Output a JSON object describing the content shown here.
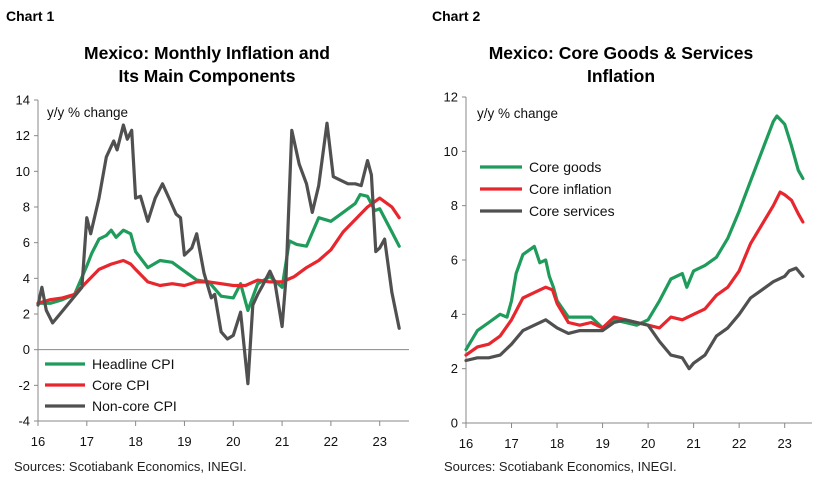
{
  "chart_data": [
    {
      "type": "line",
      "chart_label": "Chart 1",
      "title_line1": "Mexico: Monthly Inflation and",
      "title_line2": "Its Main Components",
      "ylabel": "y/y % change",
      "ylim": [
        -4,
        14
      ],
      "yticks": [
        -4,
        -2,
        0,
        2,
        4,
        6,
        8,
        10,
        12,
        14
      ],
      "xlim": [
        16,
        23.6
      ],
      "xticks": [
        "16",
        "17",
        "18",
        "19",
        "20",
        "21",
        "22",
        "23"
      ],
      "source": "Sources: Scotiabank Economics, INEGI.",
      "legend_position": "bottom-left",
      "series": [
        {
          "name": "Headline CPI",
          "color": "#1f9c5b",
          "x": [
            16,
            16.25,
            16.5,
            16.75,
            17,
            17.1,
            17.25,
            17.4,
            17.5,
            17.6,
            17.75,
            17.9,
            18,
            18.25,
            18.5,
            18.75,
            19,
            19.25,
            19.5,
            19.75,
            20,
            20.15,
            20.3,
            20.5,
            20.75,
            21,
            21.15,
            21.3,
            21.5,
            21.75,
            22,
            22.25,
            22.5,
            22.6,
            22.75,
            22.9,
            23,
            23.25,
            23.4
          ],
          "values": [
            2.6,
            2.6,
            2.8,
            3.1,
            4.7,
            5.4,
            6.2,
            6.4,
            6.7,
            6.3,
            6.7,
            6.5,
            5.5,
            4.6,
            5.0,
            4.9,
            4.4,
            3.9,
            3.8,
            3.0,
            2.9,
            3.7,
            2.2,
            3.7,
            4.1,
            3.5,
            6.1,
            5.9,
            5.8,
            7.4,
            7.2,
            7.7,
            8.2,
            8.7,
            8.6,
            7.8,
            7.9,
            6.6,
            5.8
          ]
        },
        {
          "name": "Core CPI",
          "color": "#e8262d",
          "x": [
            16,
            16.25,
            16.5,
            16.75,
            17,
            17.25,
            17.5,
            17.75,
            17.9,
            18,
            18.25,
            18.5,
            18.75,
            19,
            19.25,
            19.5,
            19.75,
            20,
            20.25,
            20.5,
            20.75,
            21,
            21.25,
            21.5,
            21.75,
            22,
            22.25,
            22.5,
            22.75,
            23,
            23.1,
            23.25,
            23.4
          ],
          "values": [
            2.6,
            2.8,
            2.9,
            3.1,
            3.8,
            4.5,
            4.8,
            5.0,
            4.8,
            4.5,
            3.8,
            3.6,
            3.7,
            3.6,
            3.8,
            3.8,
            3.7,
            3.6,
            3.6,
            3.9,
            3.8,
            3.8,
            4.1,
            4.6,
            5.0,
            5.6,
            6.6,
            7.3,
            8.0,
            8.5,
            8.3,
            8.0,
            7.4
          ]
        },
        {
          "name": "Non-core CPI",
          "color": "#505050",
          "x": [
            16,
            16.08,
            16.17,
            16.3,
            16.45,
            16.6,
            16.75,
            16.9,
            17,
            17.08,
            17.25,
            17.4,
            17.55,
            17.62,
            17.75,
            17.83,
            17.92,
            18,
            18.1,
            18.25,
            18.4,
            18.55,
            18.7,
            18.83,
            18.92,
            19,
            19.15,
            19.25,
            19.4,
            19.55,
            19.62,
            19.75,
            19.88,
            20,
            20.15,
            20.3,
            20.4,
            20.5,
            20.6,
            20.75,
            20.85,
            21,
            21.08,
            21.2,
            21.35,
            21.5,
            21.62,
            21.75,
            21.92,
            22.05,
            22.2,
            22.35,
            22.5,
            22.62,
            22.75,
            22.83,
            22.92,
            23,
            23.1,
            23.25,
            23.4
          ],
          "values": [
            2.5,
            3.5,
            2.2,
            1.5,
            2.0,
            2.5,
            3.0,
            3.5,
            7.4,
            6.5,
            8.5,
            10.8,
            11.7,
            11.2,
            12.6,
            11.8,
            12.3,
            8.5,
            8.6,
            7.2,
            8.5,
            9.3,
            8.4,
            7.6,
            7.4,
            5.3,
            5.7,
            6.5,
            4.3,
            2.9,
            3.1,
            1.0,
            0.6,
            0.8,
            2.1,
            -1.9,
            2.5,
            3.1,
            3.6,
            4.4,
            3.8,
            1.3,
            4.0,
            12.3,
            10.4,
            9.3,
            7.7,
            9.2,
            12.7,
            9.7,
            9.5,
            9.3,
            9.3,
            9.2,
            10.6,
            9.8,
            5.5,
            5.7,
            6.2,
            3.2,
            1.2
          ]
        }
      ]
    },
    {
      "type": "line",
      "chart_label": "Chart 2",
      "title_line1": "Mexico: Core Goods & Services",
      "title_line2": "Inflation",
      "ylabel": "y/y % change",
      "ylim": [
        0,
        12
      ],
      "yticks": [
        0,
        2,
        4,
        6,
        8,
        10,
        12
      ],
      "xlim": [
        16,
        23.6
      ],
      "xticks": [
        "16",
        "17",
        "18",
        "19",
        "20",
        "21",
        "22",
        "23"
      ],
      "source": "Sources: Scotiabank Economics, INEGI.",
      "legend_position": "top-left",
      "series": [
        {
          "name": "Core goods",
          "color": "#1f9c5b",
          "x": [
            16,
            16.25,
            16.5,
            16.75,
            16.9,
            17,
            17.1,
            17.25,
            17.5,
            17.62,
            17.75,
            17.83,
            17.92,
            18,
            18.25,
            18.5,
            18.75,
            19,
            19.25,
            19.5,
            19.75,
            20,
            20.25,
            20.5,
            20.75,
            20.85,
            21,
            21.25,
            21.5,
            21.75,
            22,
            22.25,
            22.5,
            22.75,
            22.83,
            23,
            23.15,
            23.3,
            23.4
          ],
          "values": [
            2.7,
            3.4,
            3.7,
            4.0,
            3.9,
            4.5,
            5.5,
            6.2,
            6.5,
            5.9,
            6.0,
            5.4,
            5.0,
            4.5,
            3.9,
            3.9,
            3.9,
            3.5,
            3.8,
            3.7,
            3.6,
            3.8,
            4.5,
            5.3,
            5.5,
            5.0,
            5.6,
            5.8,
            6.1,
            6.8,
            7.8,
            8.9,
            10.0,
            11.1,
            11.3,
            11.0,
            10.2,
            9.3,
            9.0
          ]
        },
        {
          "name": "Core inflation",
          "color": "#e8262d",
          "x": [
            16,
            16.25,
            16.5,
            16.75,
            17,
            17.25,
            17.5,
            17.75,
            17.9,
            18,
            18.25,
            18.5,
            18.75,
            19,
            19.25,
            19.5,
            19.75,
            20,
            20.25,
            20.5,
            20.75,
            21,
            21.25,
            21.5,
            21.75,
            22,
            22.25,
            22.5,
            22.75,
            22.9,
            23,
            23.15,
            23.3,
            23.4
          ],
          "values": [
            2.5,
            2.8,
            2.9,
            3.2,
            3.8,
            4.6,
            4.8,
            5.0,
            4.9,
            4.4,
            3.7,
            3.6,
            3.7,
            3.5,
            3.9,
            3.8,
            3.7,
            3.6,
            3.5,
            3.9,
            3.8,
            4.0,
            4.2,
            4.7,
            5.0,
            5.6,
            6.6,
            7.3,
            8.0,
            8.5,
            8.4,
            8.2,
            7.7,
            7.4
          ]
        },
        {
          "name": "Core services",
          "color": "#505050",
          "x": [
            16,
            16.25,
            16.5,
            16.75,
            17,
            17.25,
            17.5,
            17.75,
            18,
            18.25,
            18.5,
            18.75,
            19,
            19.25,
            19.5,
            19.75,
            20,
            20.25,
            20.5,
            20.75,
            20.9,
            21,
            21.25,
            21.5,
            21.75,
            22,
            22.25,
            22.5,
            22.75,
            23,
            23.1,
            23.25,
            23.4
          ],
          "values": [
            2.3,
            2.4,
            2.4,
            2.5,
            2.9,
            3.4,
            3.6,
            3.8,
            3.5,
            3.3,
            3.4,
            3.4,
            3.4,
            3.7,
            3.8,
            3.7,
            3.6,
            3.0,
            2.5,
            2.4,
            2.0,
            2.2,
            2.5,
            3.2,
            3.5,
            4.0,
            4.6,
            4.9,
            5.2,
            5.4,
            5.6,
            5.7,
            5.4
          ]
        }
      ]
    }
  ]
}
